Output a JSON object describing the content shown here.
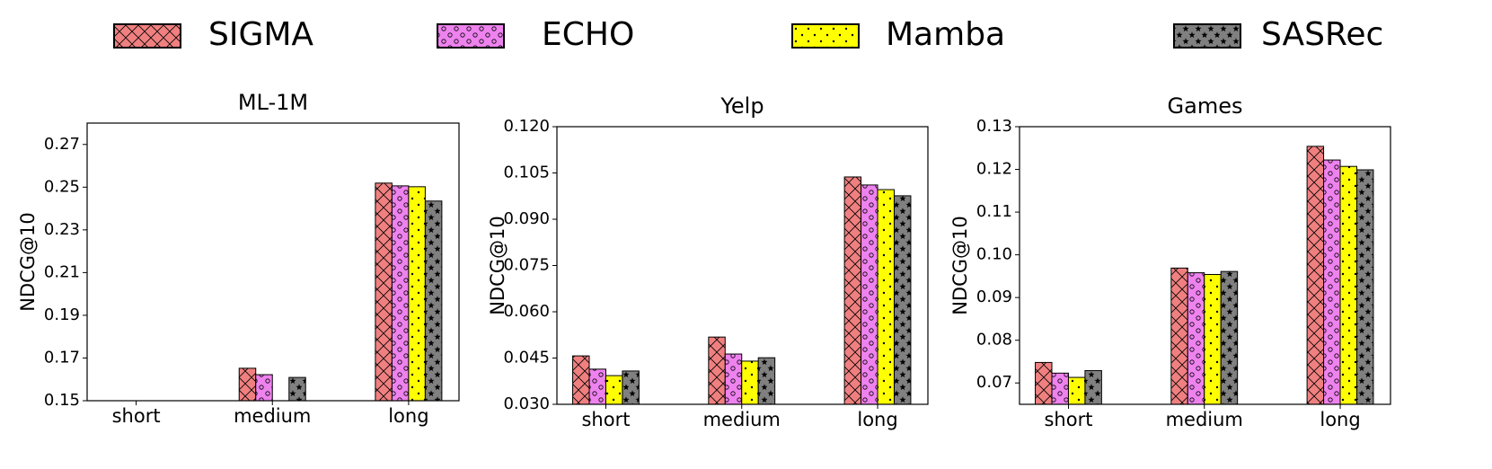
{
  "chart_data": [
    {
      "type": "bar",
      "title": "ML-1M",
      "y_label": "NDCG@10",
      "categories": [
        "short",
        "medium",
        "long"
      ],
      "ylim": [
        0.15,
        0.28
      ],
      "yticks": [
        0.15,
        0.17,
        0.19,
        0.21,
        0.23,
        0.25,
        0.27
      ],
      "series": [
        {
          "name": "SIGMA",
          "color": "#f08080",
          "values": [
            null,
            0.1652,
            0.2519
          ]
        },
        {
          "name": "ECHO",
          "color": "#ee82ee",
          "values": [
            null,
            0.1622,
            0.2506
          ]
        },
        {
          "name": "Mamba",
          "color": "#ffff00",
          "values": [
            null,
            null,
            0.2502
          ]
        },
        {
          "name": "SASRec",
          "color": "#808080",
          "values": [
            null,
            0.1609,
            0.2435
          ]
        }
      ]
    },
    {
      "type": "bar",
      "title": "Yelp",
      "y_label": "NDCG@10",
      "categories": [
        "short",
        "medium",
        "long"
      ],
      "ylim": [
        0.03,
        0.12
      ],
      "yticks": [
        {
          "value": 0.03,
          "label": "0.030"
        },
        {
          "value": 0.045,
          "label": "0.045"
        },
        {
          "value": 0.06,
          "label": "0.060"
        },
        {
          "value": 0.075,
          "label": "0.075"
        },
        {
          "value": 0.09,
          "label": "0.090"
        },
        {
          "value": 0.105,
          "label": "0.105"
        },
        {
          "value": 0.12,
          "label": "0.120"
        }
      ],
      "series": [
        {
          "name": "SIGMA",
          "color": "#f08080",
          "values": [
            0.0457,
            0.0518,
            0.1037
          ]
        },
        {
          "name": "ECHO",
          "color": "#ee82ee",
          "values": [
            0.0414,
            0.0463,
            0.1011
          ]
        },
        {
          "name": "Mamba",
          "color": "#ffff00",
          "values": [
            0.0393,
            0.044,
            0.0996
          ]
        },
        {
          "name": "SASRec",
          "color": "#808080",
          "values": [
            0.0408,
            0.0451,
            0.0976
          ]
        }
      ]
    },
    {
      "type": "bar",
      "title": "Games",
      "y_label": "NDCG@10",
      "categories": [
        "short",
        "medium",
        "long"
      ],
      "ylim": [
        0.065,
        0.13
      ],
      "yticks": [
        0.07,
        0.08,
        0.09,
        {
          "value": 0.1,
          "label": "0.10"
        },
        0.11,
        0.12,
        0.13
      ],
      "series": [
        {
          "name": "SIGMA",
          "color": "#f08080",
          "values": [
            0.0748,
            0.0969,
            0.1254
          ]
        },
        {
          "name": "ECHO",
          "color": "#ee82ee",
          "values": [
            0.0723,
            0.0958,
            0.1222
          ]
        },
        {
          "name": "Mamba",
          "color": "#ffff00",
          "values": [
            0.0713,
            0.0954,
            0.1207
          ]
        },
        {
          "name": "SASRec",
          "color": "#808080",
          "values": [
            0.0729,
            0.0961,
            0.1199
          ]
        }
      ]
    }
  ]
}
